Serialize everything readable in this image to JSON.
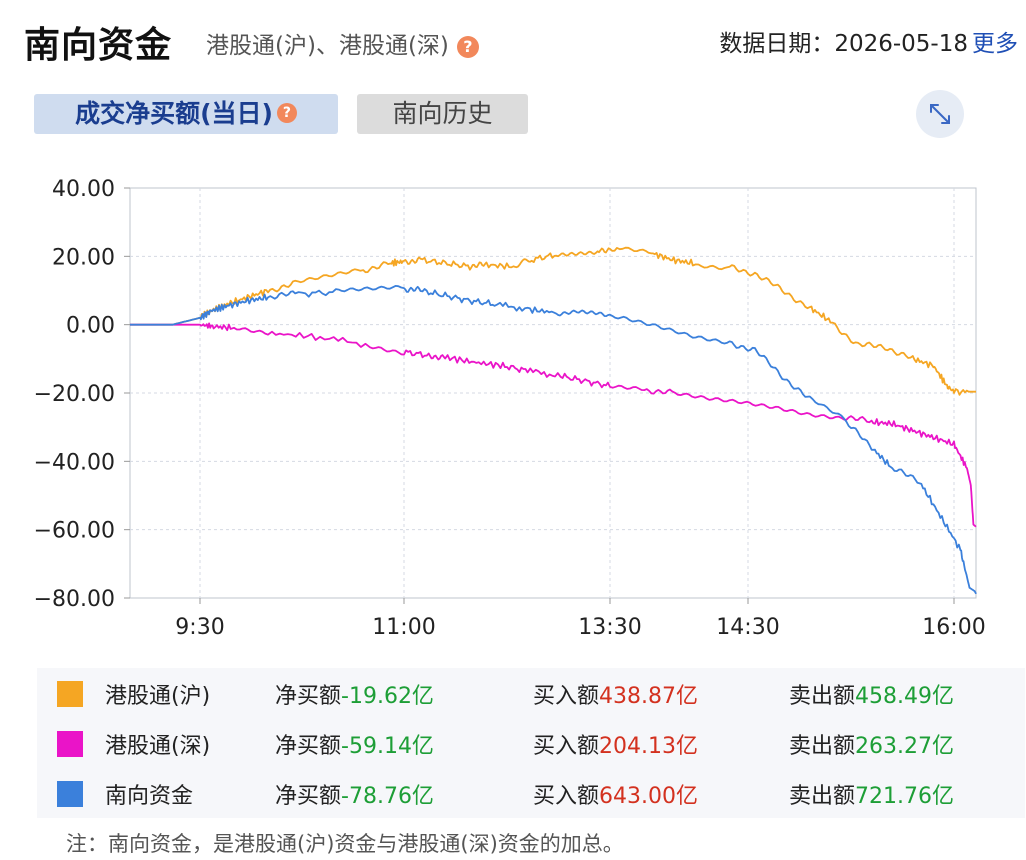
{
  "header": {
    "title": "南向资金",
    "subtitle": "港股通(沪)、港股通(深)",
    "date_text": "数据日期：2026-05-18",
    "more_link": "更多"
  },
  "tabs": [
    {
      "label": "成交净买额(当日)",
      "active": true
    },
    {
      "label": "南向历史",
      "active": false
    }
  ],
  "help_icon": "?",
  "chart_data": {
    "type": "line",
    "ylim": [
      -80,
      40
    ],
    "yticks": [
      "40.00",
      "20.00",
      "0.00",
      "−20.00",
      "−40.00",
      "−60.00",
      "−80.00"
    ],
    "xticks": [
      "9:30",
      "11:00",
      "13:30",
      "14:30",
      "16:00"
    ],
    "xtick_minutes": [
      9.5,
      11,
      13.5,
      14.5,
      16
    ],
    "series": [
      {
        "name": "港股通(沪)",
        "color": "#f5a623",
        "points": [
          [
            9.17,
            0
          ],
          [
            9.37,
            0
          ],
          [
            9.5,
            2
          ],
          [
            9.58,
            4
          ],
          [
            9.7,
            6
          ],
          [
            9.85,
            8
          ],
          [
            10.0,
            10
          ],
          [
            10.2,
            12
          ],
          [
            10.45,
            14
          ],
          [
            10.7,
            16
          ],
          [
            10.9,
            18
          ],
          [
            11.0,
            18.5
          ],
          [
            11.2,
            19
          ],
          [
            11.5,
            18
          ],
          [
            11.8,
            17
          ],
          [
            12.0,
            17.5
          ],
          [
            12.33,
            17
          ],
          [
            12.55,
            19
          ],
          [
            12.85,
            20.5
          ],
          [
            13.1,
            21
          ],
          [
            13.35,
            21.5
          ],
          [
            13.55,
            22.5
          ],
          [
            13.8,
            21
          ],
          [
            13.95,
            19
          ],
          [
            14.1,
            18
          ],
          [
            14.35,
            17
          ],
          [
            14.55,
            15
          ],
          [
            14.75,
            10
          ],
          [
            14.95,
            5
          ],
          [
            15.1,
            1
          ],
          [
            15.3,
            -6
          ],
          [
            15.5,
            -6.5
          ],
          [
            15.7,
            -10
          ],
          [
            15.85,
            -12
          ],
          [
            15.95,
            -18
          ],
          [
            16.0,
            -19.6
          ],
          [
            16.17,
            -19.62
          ]
        ]
      },
      {
        "name": "港股通(深)",
        "color": "#ea14c8",
        "points": [
          [
            9.17,
            0
          ],
          [
            9.37,
            0
          ],
          [
            9.5,
            0
          ],
          [
            9.6,
            -0.5
          ],
          [
            9.75,
            -1
          ],
          [
            10.0,
            -2.5
          ],
          [
            10.35,
            -3.5
          ],
          [
            10.75,
            -6
          ],
          [
            11.0,
            -8
          ],
          [
            11.3,
            -9
          ],
          [
            11.5,
            -9.5
          ],
          [
            11.85,
            -11
          ],
          [
            12.2,
            -12
          ],
          [
            12.5,
            -13.5
          ],
          [
            12.9,
            -15
          ],
          [
            13.2,
            -16.5
          ],
          [
            13.5,
            -18
          ],
          [
            13.75,
            -19
          ],
          [
            13.95,
            -20
          ],
          [
            14.2,
            -21.5
          ],
          [
            14.45,
            -22.5
          ],
          [
            14.7,
            -24
          ],
          [
            14.95,
            -26
          ],
          [
            15.2,
            -27
          ],
          [
            15.4,
            -28.5
          ],
          [
            15.55,
            -29
          ],
          [
            15.7,
            -31
          ],
          [
            15.85,
            -33
          ],
          [
            16.0,
            -35
          ],
          [
            16.1,
            -42
          ],
          [
            16.13,
            -47
          ],
          [
            16.15,
            -58.5
          ],
          [
            16.17,
            -59.14
          ]
        ]
      },
      {
        "name": "南向资金",
        "color": "#3b80db",
        "points": [
          [
            9.17,
            0
          ],
          [
            9.37,
            0
          ],
          [
            9.5,
            2
          ],
          [
            9.58,
            4
          ],
          [
            9.7,
            5.5
          ],
          [
            9.85,
            7
          ],
          [
            10.0,
            8
          ],
          [
            10.2,
            9
          ],
          [
            10.5,
            9.5
          ],
          [
            10.75,
            10
          ],
          [
            11.0,
            10.5
          ],
          [
            11.2,
            10
          ],
          [
            11.5,
            8.5
          ],
          [
            11.8,
            7
          ],
          [
            12.1,
            6
          ],
          [
            12.5,
            4.5
          ],
          [
            12.85,
            3.5
          ],
          [
            13.1,
            4.5
          ],
          [
            13.35,
            4
          ],
          [
            13.6,
            2.5
          ],
          [
            13.85,
            0
          ],
          [
            14.1,
            -3
          ],
          [
            14.35,
            -5
          ],
          [
            14.55,
            -7.5
          ],
          [
            14.75,
            -15
          ],
          [
            14.95,
            -22
          ],
          [
            15.2,
            -28
          ],
          [
            15.4,
            -36
          ],
          [
            15.55,
            -42
          ],
          [
            15.75,
            -46
          ],
          [
            15.9,
            -56
          ],
          [
            16.05,
            -66
          ],
          [
            16.12,
            -77
          ],
          [
            16.16,
            -78
          ],
          [
            16.17,
            -78.76
          ]
        ]
      }
    ]
  },
  "legend": [
    {
      "name": "港股通(沪)",
      "color": "#f5a623",
      "net_label": "净买额",
      "net_value": "-19.62亿",
      "buy_label": "买入额",
      "buy_value": "438.87亿",
      "sell_label": "卖出额",
      "sell_value": "458.49亿"
    },
    {
      "name": "港股通(深)",
      "color": "#ea14c8",
      "net_label": "净买额",
      "net_value": "-59.14亿",
      "buy_label": "买入额",
      "buy_value": "204.13亿",
      "sell_label": "卖出额",
      "sell_value": "263.27亿"
    },
    {
      "name": "南向资金",
      "color": "#3b80db",
      "net_label": "净买额",
      "net_value": "-78.76亿",
      "buy_label": "买入额",
      "buy_value": "643.00亿",
      "sell_label": "卖出额",
      "sell_value": "721.76亿"
    }
  ],
  "note": "注：南向资金，是港股通(沪)资金与港股通(深)资金的加总。"
}
